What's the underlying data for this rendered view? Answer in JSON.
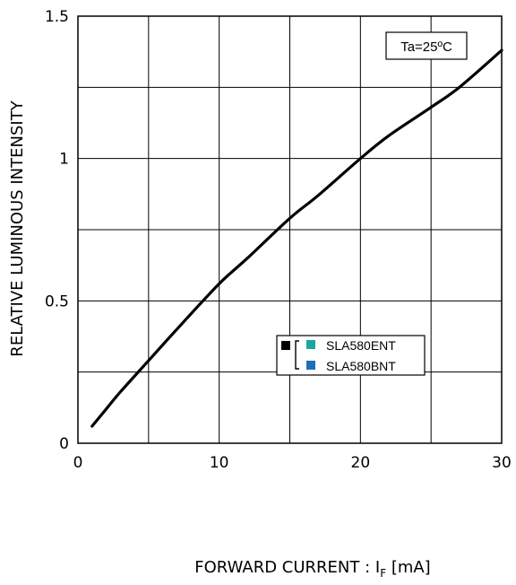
{
  "chart_data": {
    "type": "line",
    "title": "",
    "xlabel": "FORWARD CURRENT : I",
    "xlabel_subscript": "F",
    "xlabel_unit": " [mA]",
    "ylabel": "RELATIVE LUMINOUS INTENSITY",
    "xlim": [
      0,
      30
    ],
    "ylim": [
      0,
      1.5
    ],
    "x_ticks": [
      0,
      10,
      20,
      30
    ],
    "y_ticks": [
      0,
      0.5,
      1,
      1.5
    ],
    "x_tick_labels": [
      "0",
      "10",
      "20",
      "30"
    ],
    "y_tick_labels": [
      "0",
      "0.5",
      "1",
      "1.5"
    ],
    "grid": true,
    "grid_x_step": 5,
    "grid_y_step": 0.25,
    "annotation": "Ta=25ºC",
    "legend_placement": "lower-right",
    "legend": {
      "marker_color": "#000000",
      "entries": [
        {
          "name": "SLA580ENT",
          "color": "#1aa89a"
        },
        {
          "name": "SLA580BNT",
          "color": "#1b6fb5"
        }
      ]
    },
    "series": [
      {
        "name": "",
        "color": "#000000",
        "x": [
          1,
          2,
          3,
          5,
          7,
          10,
          12,
          15,
          17,
          20,
          22,
          25,
          27,
          30
        ],
        "y": [
          0.06,
          0.12,
          0.18,
          0.29,
          0.4,
          0.56,
          0.65,
          0.79,
          0.87,
          1.0,
          1.08,
          1.18,
          1.25,
          1.38
        ]
      }
    ]
  }
}
